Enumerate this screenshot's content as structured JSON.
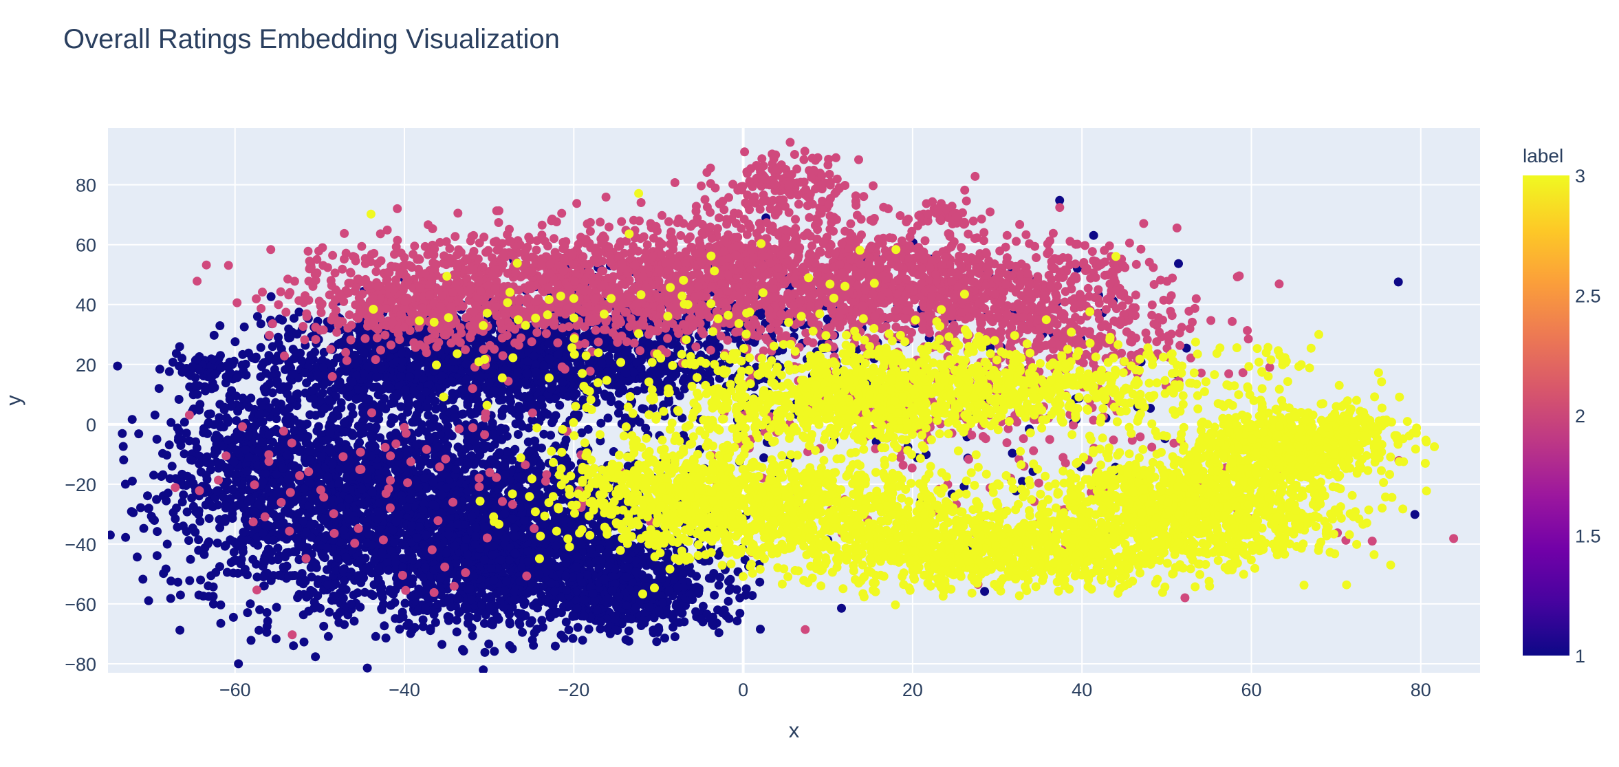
{
  "chart_data": {
    "type": "scatter",
    "title": "Overall Ratings Embedding Visualization",
    "xlabel": "x",
    "ylabel": "y",
    "xlim": [
      -75,
      87
    ],
    "ylim": [
      -83,
      99
    ],
    "x_ticks": [
      -60,
      -40,
      -20,
      0,
      20,
      40,
      60,
      80
    ],
    "y_ticks": [
      -80,
      -60,
      -40,
      -20,
      0,
      20,
      40,
      60,
      80
    ],
    "x_tick_labels": [
      "−60",
      "−40",
      "−20",
      "0",
      "20",
      "40",
      "60",
      "80"
    ],
    "y_tick_labels": [
      "−80",
      "−60",
      "−40",
      "−20",
      "0",
      "20",
      "40",
      "60",
      "80"
    ],
    "grid": true,
    "colorbar": {
      "title": "label",
      "min": 1,
      "max": 3,
      "ticks": [
        1,
        1.5,
        2,
        2.5,
        3
      ],
      "tick_labels": [
        "1",
        "1.5",
        "2",
        "2.5",
        "3"
      ],
      "colorscale": [
        "#0d0887",
        "#46039f",
        "#7201a8",
        "#9c179e",
        "#bd3786",
        "#d8576b",
        "#ed7953",
        "#fb9f3a",
        "#fdca26",
        "#f0f921"
      ]
    },
    "series": [
      {
        "label": 1,
        "color": "#0d0887",
        "clusters": [
          {
            "cx": -38,
            "cy": -30,
            "sx": 13,
            "sy": 17,
            "n": 2800
          },
          {
            "cx": -22,
            "cy": -48,
            "sx": 9,
            "sy": 10,
            "n": 1000
          },
          {
            "cx": -12,
            "cy": -58,
            "sx": 6,
            "sy": 5,
            "n": 250
          },
          {
            "cx": -56,
            "cy": -10,
            "sx": 6,
            "sy": 12,
            "n": 500
          },
          {
            "cx": -35,
            "cy": 20,
            "sx": 11,
            "sy": 9,
            "n": 1300
          },
          {
            "cx": -15,
            "cy": 25,
            "sx": 10,
            "sy": 9,
            "n": 650
          },
          {
            "cx": -63,
            "cy": 17,
            "sx": 2.5,
            "sy": 3,
            "n": 70
          },
          {
            "cx": 0,
            "cy": 30,
            "sx": 18,
            "sy": 16,
            "n": 200
          },
          {
            "cx": 25,
            "cy": 10,
            "sx": 20,
            "sy": 25,
            "n": 90
          }
        ]
      },
      {
        "label": 2,
        "color": "#d0497d",
        "clusters": [
          {
            "cx": -25,
            "cy": 45,
            "sx": 13,
            "sy": 9,
            "n": 900
          },
          {
            "cx": 0,
            "cy": 50,
            "sx": 13,
            "sy": 11,
            "n": 1100
          },
          {
            "cx": 22,
            "cy": 45,
            "sx": 11,
            "sy": 9,
            "n": 700
          },
          {
            "cx": 5,
            "cy": 80,
            "sx": 4,
            "sy": 5,
            "n": 150
          },
          {
            "cx": 38,
            "cy": 30,
            "sx": 8,
            "sy": 9,
            "n": 300
          },
          {
            "cx": -40,
            "cy": 40,
            "sx": 7,
            "sy": 7,
            "n": 250
          },
          {
            "cx": 25,
            "cy": 5,
            "sx": 12,
            "sy": 10,
            "n": 200
          },
          {
            "cx": -40,
            "cy": -25,
            "sx": 18,
            "sy": 20,
            "n": 90
          },
          {
            "cx": 35,
            "cy": -30,
            "sx": 25,
            "sy": 10,
            "n": 60
          },
          {
            "cx": 43,
            "cy": 53,
            "sx": 1.5,
            "sy": 3,
            "n": 25
          },
          {
            "cx": 23,
            "cy": 70,
            "sx": 2,
            "sy": 2,
            "n": 40
          }
        ]
      },
      {
        "label": 3,
        "color": "#f0f921",
        "clusters": [
          {
            "cx": 5,
            "cy": -28,
            "sx": 12,
            "sy": 9,
            "n": 1000
          },
          {
            "cx": 30,
            "cy": -42,
            "sx": 12,
            "sy": 6,
            "n": 900
          },
          {
            "cx": 52,
            "cy": -28,
            "sx": 9,
            "sy": 9,
            "n": 1100
          },
          {
            "cx": 63,
            "cy": -8,
            "sx": 6,
            "sy": 7,
            "n": 600
          },
          {
            "cx": 25,
            "cy": 12,
            "sx": 15,
            "sy": 8,
            "n": 900
          },
          {
            "cx": 10,
            "cy": 5,
            "sx": 10,
            "sy": 7,
            "n": 350
          },
          {
            "cx": -10,
            "cy": -20,
            "sx": 6,
            "sy": 8,
            "n": 300
          },
          {
            "cx": 72,
            "cy": -2,
            "sx": 3,
            "sy": 5,
            "n": 100
          },
          {
            "cx": -5,
            "cy": 30,
            "sx": 20,
            "sy": 15,
            "n": 120
          },
          {
            "cx": 63,
            "cy": 22,
            "sx": 1.5,
            "sy": 3,
            "n": 15
          }
        ]
      }
    ]
  }
}
